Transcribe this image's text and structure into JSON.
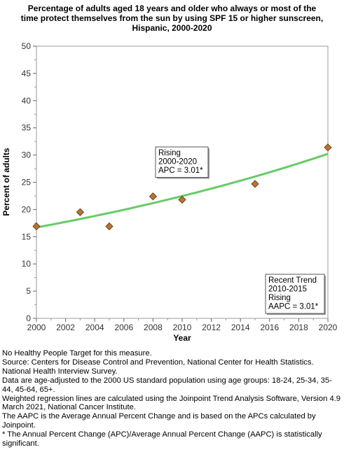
{
  "chart_data": {
    "type": "scatter",
    "title_lines": [
      "Percentage of adults aged 18 years and older who always or most of the",
      "time protect themselves from the sun by using SPF 15 or higher sunscreen,",
      "Hispanic,  2000-2020"
    ],
    "xlabel": "Year",
    "ylabel": "Percent of adults",
    "xlim": [
      2000,
      2020
    ],
    "ylim": [
      0,
      50
    ],
    "x_ticks": [
      "2000",
      "2002",
      "2004",
      "2006",
      "2008",
      "2010",
      "2012",
      "2014",
      "2016",
      "2018",
      "2020"
    ],
    "y_ticks": [
      "0",
      "5",
      "10",
      "15",
      "20",
      "25",
      "30",
      "35",
      "40",
      "45",
      "50"
    ],
    "grid": false,
    "points": [
      {
        "x": 2000,
        "y": 16.9
      },
      {
        "x": 2003,
        "y": 19.5
      },
      {
        "x": 2005,
        "y": 16.9
      },
      {
        "x": 2008,
        "y": 22.4
      },
      {
        "x": 2010,
        "y": 21.8
      },
      {
        "x": 2015,
        "y": 24.7
      },
      {
        "x": 2020,
        "y": 31.4
      }
    ],
    "trend": {
      "start_year": 2000,
      "start_value": 16.7,
      "apc": 3.01
    },
    "point_color": "#b87333",
    "trend_color": "#66cc66",
    "annotations": [
      {
        "lines": [
          "Rising",
          "2000-2020",
          "APC =  3.01*"
        ]
      },
      {
        "lines": [
          "Recent Trend",
          "2010-2015",
          "Rising",
          "AAPC =  3.01*"
        ]
      }
    ]
  },
  "footnotes": [
    "No Healthy People Target for this measure.",
    "Source: Centers for Disease Control and Prevention, National Center for Health Statistics. National Health Interview Survey.",
    "Data are age-adjusted to the 2000 US standard population using age groups: 18-24, 25-34, 35-44, 45-64, 65+.",
    "Weighted regression lines are calculated using the Joinpoint Trend Analysis Software, Version 4.9 March 2021, National Cancer Institute.",
    "The AAPC is the Average Annual Percent Change and is based on the APCs calculated by Joinpoint.",
    "* The Annual Percent Change (APC)/Average Annual Percent Change (AAPC) is statistically significant."
  ]
}
